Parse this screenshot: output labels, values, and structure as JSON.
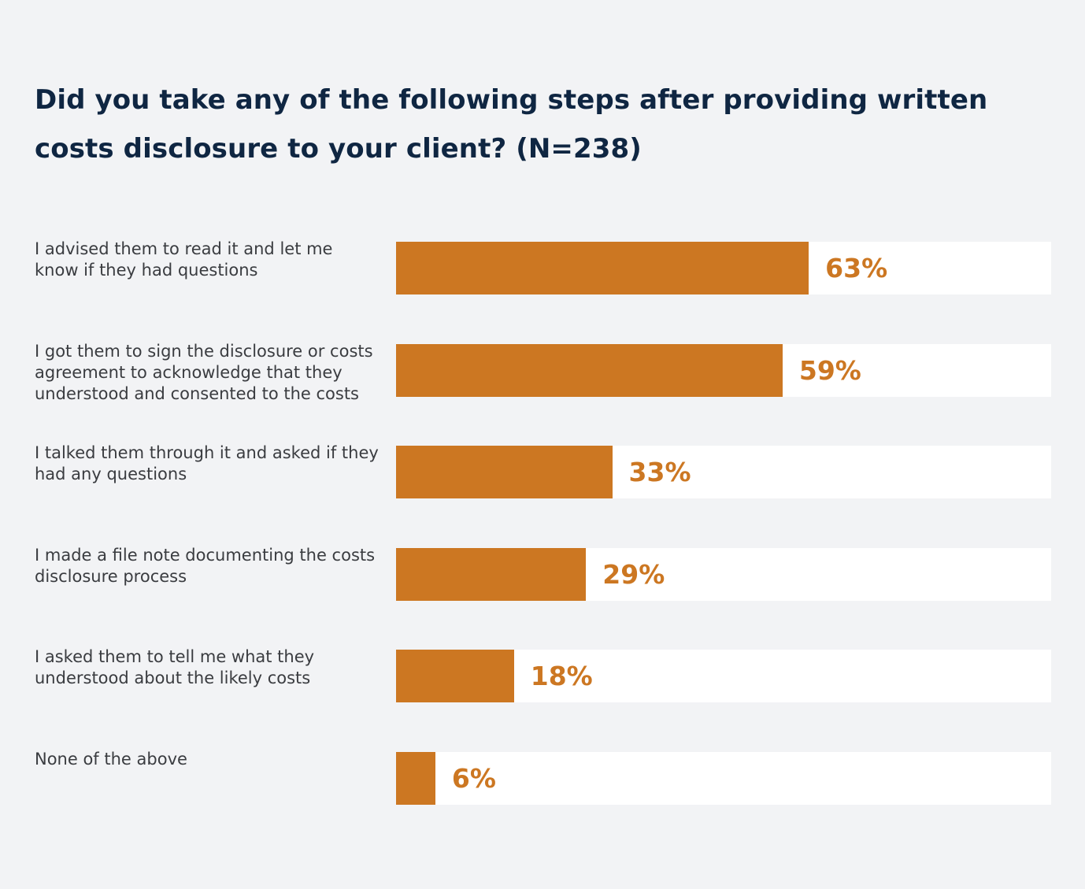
{
  "chart_data": {
    "type": "bar",
    "orientation": "horizontal",
    "title": "Did you take any of the following steps after providing written costs disclosure to your client? (N=238)",
    "xlim": [
      0,
      100
    ],
    "grid": false,
    "legend": "none",
    "categories": [
      "I advised them to read it and let me know if they had questions",
      "I got them to sign the disclosure or costs agreement to acknowledge that they understood and consented to the costs",
      "I talked them through it and asked if they had any questions",
      "I made a file note documenting the costs disclosure process",
      "I asked them to tell me what they understood about the likely costs",
      "None of the above"
    ],
    "values": [
      63,
      59,
      33,
      29,
      18,
      6
    ],
    "value_labels": [
      "63%",
      "59%",
      "33%",
      "29%",
      "18%",
      "6%"
    ],
    "colors": {
      "bar": "#cc7722",
      "track": "#ffffff",
      "background": "#f2f3f5",
      "title": "#0f2642",
      "label": "#3a3c40"
    }
  }
}
